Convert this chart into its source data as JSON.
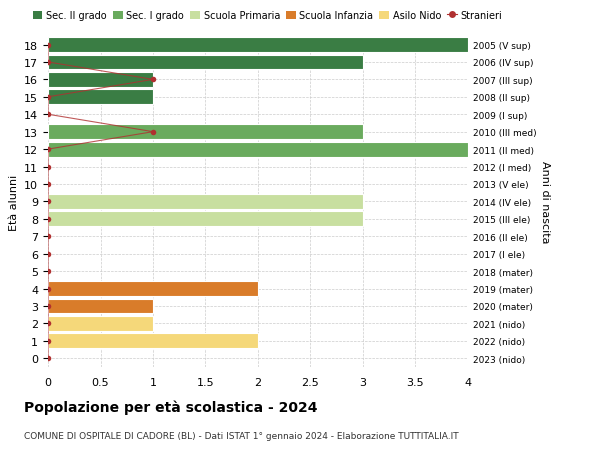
{
  "ages": [
    18,
    17,
    16,
    15,
    14,
    13,
    12,
    11,
    10,
    9,
    8,
    7,
    6,
    5,
    4,
    3,
    2,
    1,
    0
  ],
  "right_labels": [
    "2005 (V sup)",
    "2006 (IV sup)",
    "2007 (III sup)",
    "2008 (II sup)",
    "2009 (I sup)",
    "2010 (III med)",
    "2011 (II med)",
    "2012 (I med)",
    "2013 (V ele)",
    "2014 (IV ele)",
    "2015 (III ele)",
    "2016 (II ele)",
    "2017 (I ele)",
    "2018 (mater)",
    "2019 (mater)",
    "2020 (mater)",
    "2021 (nido)",
    "2022 (nido)",
    "2023 (nido)"
  ],
  "bars": [
    {
      "age": 18,
      "value": 4.0,
      "color": "#3a7d44"
    },
    {
      "age": 17,
      "value": 3.0,
      "color": "#3a7d44"
    },
    {
      "age": 16,
      "value": 1.0,
      "color": "#3a7d44"
    },
    {
      "age": 15,
      "value": 1.0,
      "color": "#3a7d44"
    },
    {
      "age": 14,
      "value": 0.0,
      "color": "#3a7d44"
    },
    {
      "age": 13,
      "value": 3.0,
      "color": "#6aab5e"
    },
    {
      "age": 12,
      "value": 4.0,
      "color": "#6aab5e"
    },
    {
      "age": 11,
      "value": 0.0,
      "color": "#6aab5e"
    },
    {
      "age": 10,
      "value": 0.0,
      "color": "#c8dfa0"
    },
    {
      "age": 9,
      "value": 3.0,
      "color": "#c8dfa0"
    },
    {
      "age": 8,
      "value": 3.0,
      "color": "#c8dfa0"
    },
    {
      "age": 7,
      "value": 0.0,
      "color": "#c8dfa0"
    },
    {
      "age": 6,
      "value": 0.0,
      "color": "#c8dfa0"
    },
    {
      "age": 5,
      "value": 0.0,
      "color": "#c8dfa0"
    },
    {
      "age": 4,
      "value": 2.0,
      "color": "#d97c2a"
    },
    {
      "age": 3,
      "value": 1.0,
      "color": "#d97c2a"
    },
    {
      "age": 2,
      "value": 1.0,
      "color": "#f5d87a"
    },
    {
      "age": 1,
      "value": 2.0,
      "color": "#f5d87a"
    },
    {
      "age": 0,
      "value": 0.0,
      "color": "#f5d87a"
    }
  ],
  "stranieri_line": [
    {
      "age": 18,
      "value": 0
    },
    {
      "age": 17,
      "value": 0
    },
    {
      "age": 16,
      "value": 1.0
    },
    {
      "age": 15,
      "value": 0
    },
    {
      "age": 14,
      "value": 0
    },
    {
      "age": 13,
      "value": 1.0
    },
    {
      "age": 12,
      "value": 0
    },
    {
      "age": 11,
      "value": 0
    },
    {
      "age": 10,
      "value": 0
    },
    {
      "age": 9,
      "value": 0
    },
    {
      "age": 8,
      "value": 0
    },
    {
      "age": 7,
      "value": 0
    },
    {
      "age": 6,
      "value": 0
    },
    {
      "age": 5,
      "value": 0
    },
    {
      "age": 4,
      "value": 0
    },
    {
      "age": 3,
      "value": 0
    },
    {
      "age": 2,
      "value": 0
    },
    {
      "age": 1,
      "value": 0
    },
    {
      "age": 0,
      "value": 0
    }
  ],
  "colors": {
    "sec2": "#3a7d44",
    "sec1": "#6aab5e",
    "primaria": "#c8dfa0",
    "infanzia": "#d97c2a",
    "nido": "#f5d87a",
    "stranieri": "#b03030",
    "background": "#ffffff",
    "grid": "#cccccc"
  },
  "legend_labels": [
    "Sec. II grado",
    "Sec. I grado",
    "Scuola Primaria",
    "Scuola Infanzia",
    "Asilo Nido",
    "Stranieri"
  ],
  "title": "Popolazione per età scolastica - 2024",
  "subtitle": "COMUNE DI OSPITALE DI CADORE (BL) - Dati ISTAT 1° gennaio 2024 - Elaborazione TUTTITALIA.IT",
  "ylabel": "Età alunni",
  "right_ylabel": "Anni di nascita",
  "xlim": [
    0,
    4.0
  ],
  "xticks": [
    0,
    0.5,
    1.0,
    1.5,
    2.0,
    2.5,
    3.0,
    3.5,
    4.0
  ]
}
